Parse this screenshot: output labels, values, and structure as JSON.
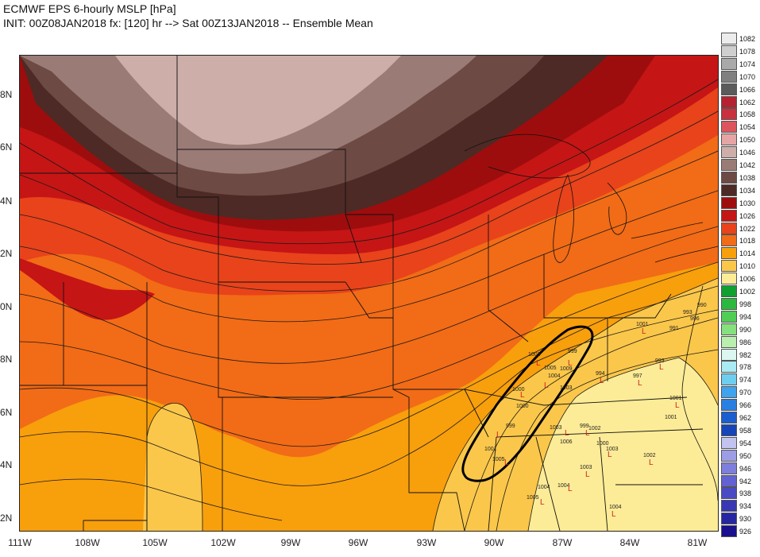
{
  "header": {
    "line1": "ECMWF EPS 6-hourly MSLP [hPa]",
    "line2": "INIT: 00Z08JAN2018 fx: [120] hr --> Sat 00Z13JAN2018 -- Ensemble Mean"
  },
  "axes": {
    "lat_labels": [
      "8N",
      "6N",
      "4N",
      "2N",
      "0N",
      "8N",
      "6N",
      "4N",
      "2N"
    ],
    "lon_labels": [
      "111W",
      "108W",
      "105W",
      "102W",
      "99W",
      "96W",
      "93W",
      "90W",
      "87W",
      "84W",
      "81W"
    ]
  },
  "legend": {
    "levels": [
      {
        "value": "1082",
        "color": "#ececec"
      },
      {
        "value": "1078",
        "color": "#cfcfcf"
      },
      {
        "value": "1074",
        "color": "#a9a9a9"
      },
      {
        "value": "1070",
        "color": "#808080"
      },
      {
        "value": "1066",
        "color": "#5b5b5b"
      },
      {
        "value": "1062",
        "color": "#b4232f"
      },
      {
        "value": "1058",
        "color": "#c8313d"
      },
      {
        "value": "1054",
        "color": "#dd555c"
      },
      {
        "value": "1050",
        "color": "#e6a5a5"
      },
      {
        "value": "1046",
        "color": "#cdaea8"
      },
      {
        "value": "1042",
        "color": "#9a7b76"
      },
      {
        "value": "1038",
        "color": "#6e4a44"
      },
      {
        "value": "1034",
        "color": "#4d2a25"
      },
      {
        "value": "1030",
        "color": "#9d0d0d"
      },
      {
        "value": "1026",
        "color": "#c61515"
      },
      {
        "value": "1022",
        "color": "#e8431b"
      },
      {
        "value": "1018",
        "color": "#f26b16"
      },
      {
        "value": "1014",
        "color": "#f89f0c"
      },
      {
        "value": "1010",
        "color": "#fbc74a"
      },
      {
        "value": "1006",
        "color": "#fdec97"
      },
      {
        "value": "1002",
        "color": "#10a030"
      },
      {
        "value": "998",
        "color": "#2bb83e"
      },
      {
        "value": "994",
        "color": "#4fcd54"
      },
      {
        "value": "990",
        "color": "#86e07d"
      },
      {
        "value": "986",
        "color": "#b9f0ad"
      },
      {
        "value": "982",
        "color": "#dbf7ef"
      },
      {
        "value": "978",
        "color": "#a8ebf3"
      },
      {
        "value": "974",
        "color": "#6fcef0"
      },
      {
        "value": "970",
        "color": "#3fa3ee"
      },
      {
        "value": "966",
        "color": "#2a80e0"
      },
      {
        "value": "962",
        "color": "#1a5fd0"
      },
      {
        "value": "958",
        "color": "#1545b8"
      },
      {
        "value": "954",
        "color": "#c3c3f0"
      },
      {
        "value": "950",
        "color": "#9d9de6"
      },
      {
        "value": "946",
        "color": "#7e7edc"
      },
      {
        "value": "942",
        "color": "#6262d2"
      },
      {
        "value": "938",
        "color": "#4a4ac4"
      },
      {
        "value": "934",
        "color": "#3838b4"
      },
      {
        "value": "930",
        "color": "#2626a2"
      },
      {
        "value": "926",
        "color": "#1a0f8c"
      }
    ]
  },
  "map_labels": {
    "low_marker": "L",
    "values": [
      "1003",
      "999",
      "1005",
      "1004",
      "1009",
      "1003",
      "1000",
      "1000",
      "999",
      "1001",
      "1005",
      "1006",
      "1003",
      "999",
      "1002",
      "1000",
      "1003",
      "1003",
      "1004",
      "1004",
      "1005",
      "1004",
      "994",
      "997",
      "993",
      "1001",
      "993",
      "996",
      "990",
      "991",
      "1001",
      "1001",
      "1002"
    ]
  }
}
